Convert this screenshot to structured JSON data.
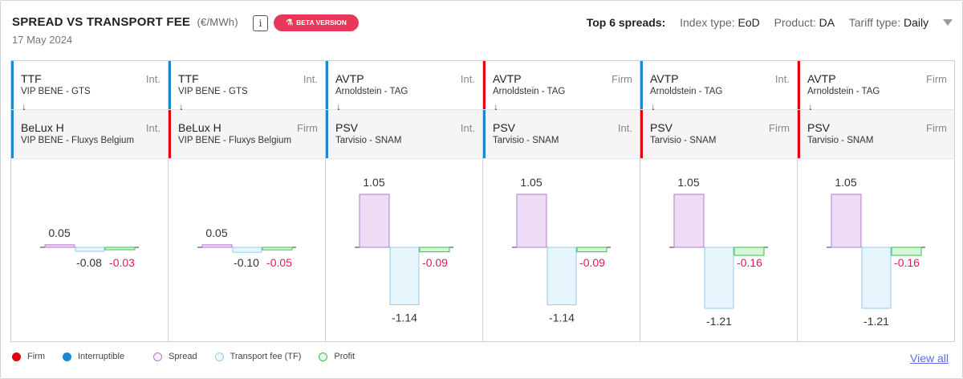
{
  "header": {
    "title": "SPREAD VS TRANSPORT FEE",
    "unit": "(€/MWh)",
    "info_label": "i",
    "beta_label": "BETA VERSION",
    "date": "17 May 2024"
  },
  "filters": {
    "top_label": "Top 6 spreads:",
    "index_label": "Index type:",
    "index_value": "EoD",
    "product_label": "Product:",
    "product_value": "DA",
    "tariff_label": "Tariff type:",
    "tariff_value": "Daily"
  },
  "colors": {
    "firm": "#e3000f",
    "interruptible": "#1c86d1",
    "spread_fill": "#eedcf7",
    "spread_stroke": "#b07ad1",
    "tf_fill": "#e6f4fc",
    "tf_stroke": "#98cbe8",
    "profit_fill": "#d9f5d9",
    "profit_stroke": "#33c24d",
    "negative_text": "#e8194a",
    "positive_text": "#333333"
  },
  "cards": [
    {
      "from": {
        "hub": "TTF",
        "point": "VIP BENE - GTS",
        "cap": "Int.",
        "cap_type": "interruptible"
      },
      "to": {
        "hub": "BeLux H",
        "point": "VIP BENE - Fluxys Belgium",
        "cap": "Int.",
        "cap_type": "interruptible"
      },
      "arrow": "↓",
      "labels": {
        "spread": "0.05",
        "tf": "-0.08",
        "profit": "-0.03"
      }
    },
    {
      "from": {
        "hub": "TTF",
        "point": "VIP BENE - GTS",
        "cap": "Int.",
        "cap_type": "interruptible"
      },
      "to": {
        "hub": "BeLux H",
        "point": "VIP BENE - Fluxys Belgium",
        "cap": "Firm",
        "cap_type": "firm"
      },
      "arrow": "↓",
      "labels": {
        "spread": "0.05",
        "tf": "-0.10",
        "profit": "-0.05"
      }
    },
    {
      "from": {
        "hub": "AVTP",
        "point": "Arnoldstein - TAG",
        "cap": "Int.",
        "cap_type": "interruptible"
      },
      "to": {
        "hub": "PSV",
        "point": "Tarvisio - SNAM",
        "cap": "Int.",
        "cap_type": "interruptible"
      },
      "arrow": "↓",
      "labels": {
        "spread": "1.05",
        "tf": "-1.14",
        "profit": "-0.09"
      }
    },
    {
      "from": {
        "hub": "AVTP",
        "point": "Arnoldstein - TAG",
        "cap": "Firm",
        "cap_type": "firm"
      },
      "to": {
        "hub": "PSV",
        "point": "Tarvisio - SNAM",
        "cap": "Int.",
        "cap_type": "interruptible"
      },
      "arrow": "↓",
      "labels": {
        "spread": "1.05",
        "tf": "-1.14",
        "profit": "-0.09"
      }
    },
    {
      "from": {
        "hub": "AVTP",
        "point": "Arnoldstein - TAG",
        "cap": "Int.",
        "cap_type": "interruptible"
      },
      "to": {
        "hub": "PSV",
        "point": "Tarvisio - SNAM",
        "cap": "Firm",
        "cap_type": "firm"
      },
      "arrow": "↓",
      "labels": {
        "spread": "1.05",
        "tf": "-1.21",
        "profit": "-0.16"
      }
    },
    {
      "from": {
        "hub": "AVTP",
        "point": "Arnoldstein - TAG",
        "cap": "Firm",
        "cap_type": "firm"
      },
      "to": {
        "hub": "PSV",
        "point": "Tarvisio - SNAM",
        "cap": "Firm",
        "cap_type": "firm"
      },
      "arrow": "↓",
      "labels": {
        "spread": "1.05",
        "tf": "-1.21",
        "profit": "-0.16"
      }
    }
  ],
  "chart_data": {
    "type": "bar",
    "categories": [
      "Spread",
      "Transport fee (TF)",
      "Profit"
    ],
    "series": [
      {
        "values": [
          0.05,
          -0.08,
          -0.03
        ]
      },
      {
        "values": [
          0.05,
          -0.1,
          -0.05
        ]
      },
      {
        "values": [
          1.05,
          -1.14,
          -0.09
        ]
      },
      {
        "values": [
          1.05,
          -1.14,
          -0.09
        ]
      },
      {
        "values": [
          1.05,
          -1.21,
          -0.16
        ]
      },
      {
        "values": [
          1.05,
          -1.21,
          -0.16
        ]
      }
    ],
    "ylim": [
      -1.35,
      1.35
    ],
    "grid": false,
    "legend_position": "bottom-left"
  },
  "legend": [
    {
      "label": "Firm",
      "key": "firm"
    },
    {
      "label": "Interruptible",
      "key": "interruptible"
    },
    {
      "label": "Spread",
      "key": "spread"
    },
    {
      "label": "Transport fee (TF)",
      "key": "tf"
    },
    {
      "label": "Profit",
      "key": "profit"
    }
  ],
  "view_all": "View all"
}
